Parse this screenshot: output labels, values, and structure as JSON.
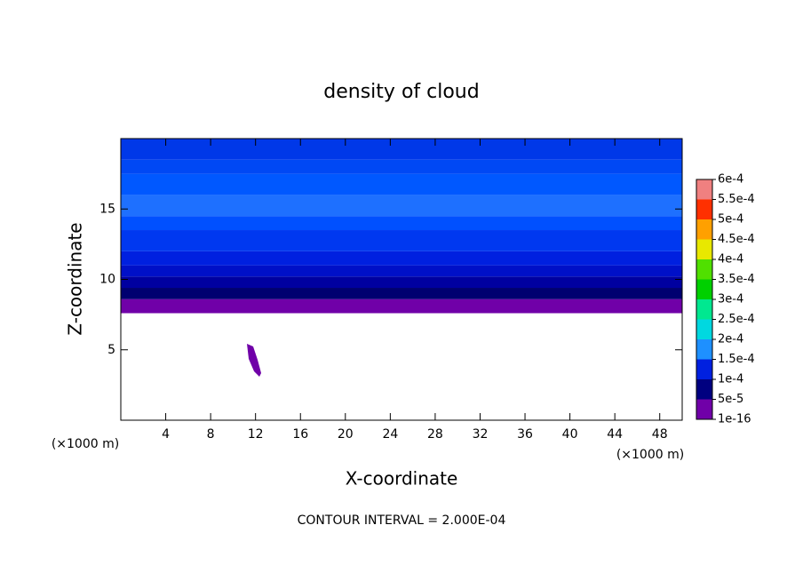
{
  "chart_data": {
    "type": "contour",
    "title": "density of cloud",
    "x_label": "X-coordinate",
    "y_label": "Z-coordinate",
    "x_unit_left": "(×1000 m)",
    "x_unit_right": "(×1000 m)",
    "annotation": "CONTOUR INTERVAL = 2.000E-04",
    "xlim": [
      0,
      50
    ],
    "xticks": [
      4,
      8,
      12,
      16,
      20,
      24,
      28,
      32,
      36,
      40,
      44,
      48
    ],
    "ylim": [
      0,
      20
    ],
    "yticks": [
      5,
      10,
      15
    ],
    "layers": [
      {
        "z": [
          7.6,
          8.6
        ],
        "color": "#7000a8"
      },
      {
        "z": [
          8.6,
          9.4
        ],
        "color": "#000070"
      },
      {
        "z": [
          9.4,
          10.2
        ],
        "color": "#0000a0"
      },
      {
        "z": [
          10.2,
          11
        ],
        "color": "#0010c8"
      },
      {
        "z": [
          11,
          12
        ],
        "color": "#0020e0"
      },
      {
        "z": [
          12,
          13.5
        ],
        "color": "#0038f0"
      },
      {
        "z": [
          13.5,
          14.5
        ],
        "color": "#0050ff"
      },
      {
        "z": [
          14.5,
          16
        ],
        "color": "#1e70ff"
      },
      {
        "z": [
          16,
          17.5
        ],
        "color": "#0058ff"
      },
      {
        "z": [
          17.5,
          18.5
        ],
        "color": "#0048f4"
      },
      {
        "z": [
          18.5,
          20
        ],
        "color": "#0038e8"
      }
    ],
    "colorbar": {
      "levels": [
        {
          "value": 1e-16,
          "label": "1e-16"
        },
        {
          "value": 5e-05,
          "label": "5e-5"
        },
        {
          "value": 0.0001,
          "label": "1e-4"
        },
        {
          "value": 0.00015,
          "label": "1.5e-4"
        },
        {
          "value": 0.0002,
          "label": "2e-4"
        },
        {
          "value": 0.00025,
          "label": "2.5e-4"
        },
        {
          "value": 0.0003,
          "label": "3e-4"
        },
        {
          "value": 0.00035,
          "label": "3.5e-4"
        },
        {
          "value": 0.0004,
          "label": "4e-4"
        },
        {
          "value": 0.00045,
          "label": "4.5e-4"
        },
        {
          "value": 0.0005,
          "label": "5e-4"
        },
        {
          "value": 0.00055,
          "label": "5.5e-4"
        },
        {
          "value": 0.0006,
          "label": "6e-4"
        }
      ],
      "colors": [
        "#7000a8",
        "#000080",
        "#0020e0",
        "#1e90ff",
        "#00d8e0",
        "#00e890",
        "#00d000",
        "#50e000",
        "#e8e800",
        "#ffa000",
        "#ff3000",
        "#f08080"
      ]
    }
  }
}
